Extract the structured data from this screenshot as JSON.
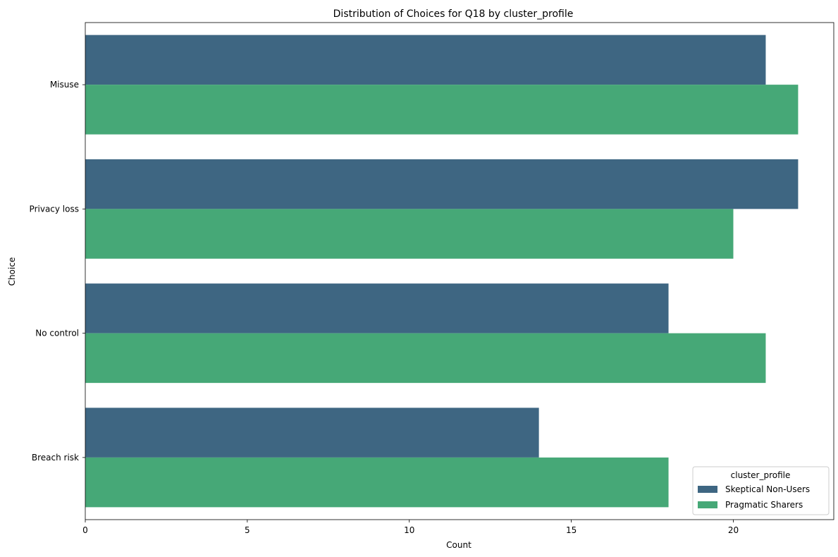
{
  "chart_data": {
    "type": "bar",
    "orientation": "horizontal",
    "title": "Distribution of Choices for Q18 by cluster_profile",
    "xlabel": "Count",
    "ylabel": "Choice",
    "categories": [
      "Misuse",
      "Privacy loss",
      "No control",
      "Breach risk"
    ],
    "series": [
      {
        "name": "Skeptical Non-Users",
        "color": "#3e6682",
        "values": [
          21,
          22,
          18,
          14
        ]
      },
      {
        "name": "Pragmatic Sharers",
        "color": "#46a877",
        "values": [
          22,
          20,
          21,
          18
        ]
      }
    ],
    "xlim": [
      0,
      23.1
    ],
    "xticks": [
      0,
      5,
      10,
      15,
      20
    ],
    "grid": false,
    "legend": {
      "title": "cluster_profile",
      "position": "lower-right"
    }
  }
}
